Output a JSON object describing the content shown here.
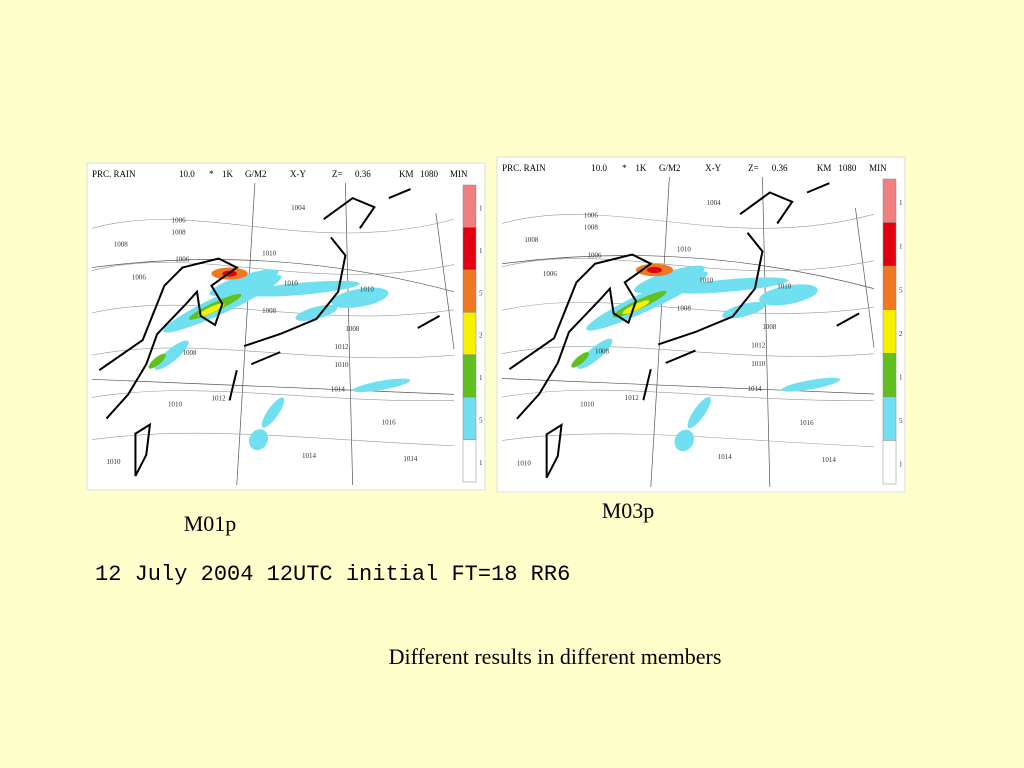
{
  "maps": [
    {
      "header": [
        "PRC.  RAIN",
        "10.0",
        "*",
        "1K",
        "G/M2",
        "X-Y",
        "Z=",
        "0.36",
        "KM",
        "1080",
        "MIN"
      ],
      "colorbar_labels": [
        "1",
        "1",
        "5",
        "2",
        "1",
        "5",
        "1"
      ],
      "isobar_labels": [
        "1004",
        "1006",
        "1008",
        "1006",
        "1010",
        "1008",
        "1006",
        "1010",
        "1010",
        "1008",
        "1008",
        "1008",
        "1010",
        "1012",
        "1014",
        "1010",
        "1012",
        "1016",
        "1014",
        "1014",
        "1010"
      ],
      "caption": "M01p"
    },
    {
      "header": [
        "PRC.  RAIN",
        "10.0",
        "*",
        "1K",
        "G/M2",
        "X-Y",
        "Z=",
        "0.36",
        "KM",
        "1080",
        "MIN"
      ],
      "colorbar_labels": [
        "1",
        "1",
        "5",
        "2",
        "1",
        "5",
        "1"
      ],
      "isobar_labels": [
        "1004",
        "1006",
        "1008",
        "1006",
        "1010",
        "1008",
        "1006",
        "1010",
        "1010",
        "1008",
        "1008",
        "1008",
        "1010",
        "1012",
        "1014",
        "1010",
        "1012",
        "1016",
        "1014",
        "1014",
        "1010"
      ],
      "caption": "M03p"
    }
  ],
  "run_info": "12 July 2004 12UTC initial FT=18 RR6",
  "conclusion": "Different results in different members"
}
